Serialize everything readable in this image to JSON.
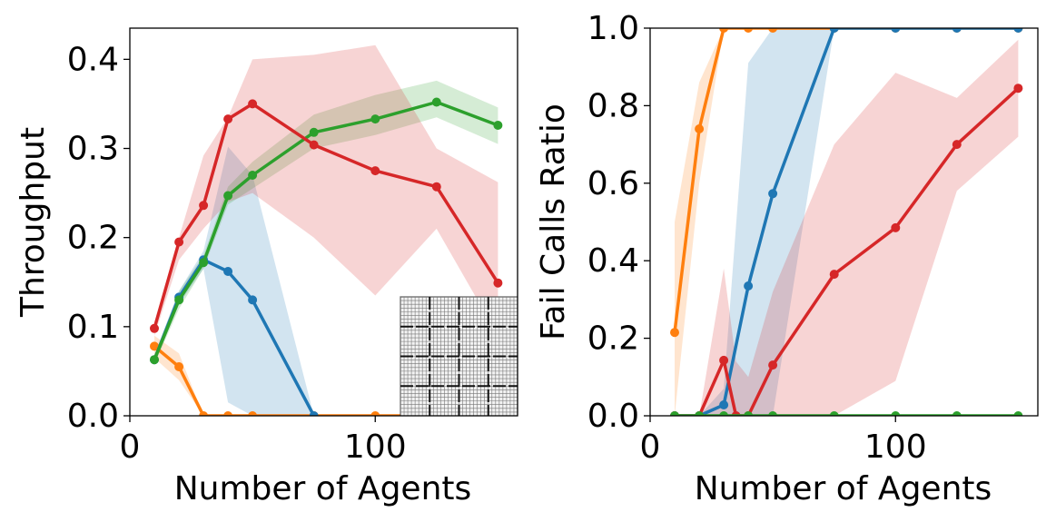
{
  "chart_data": [
    {
      "type": "line",
      "xlabel": "Number of Agents",
      "ylabel": "Throughput",
      "xlim": [
        0,
        158
      ],
      "ylim": [
        0,
        0.435
      ],
      "xticks": [
        0,
        100
      ],
      "yticks": [
        0.0,
        0.1,
        0.2,
        0.3,
        0.4
      ],
      "xtick_labels": [
        "0",
        "100"
      ],
      "ytick_labels": [
        "0.0",
        "0.1",
        "0.2",
        "0.3",
        "0.4"
      ],
      "grid": false,
      "has_inset_map": true,
      "series": [
        {
          "color": "#ff7f0e",
          "x": [
            10,
            20,
            30,
            40,
            50,
            75,
            100,
            125,
            150
          ],
          "values": [
            0.078,
            0.055,
            0.0,
            0.0,
            0.0,
            0.0,
            0.0,
            0.0,
            0.0
          ],
          "lower": [
            0.065,
            0.04,
            0.0,
            0.0,
            0.0,
            0.0,
            0.0,
            0.0,
            0.0
          ],
          "upper": [
            0.09,
            0.07,
            0.0,
            0.0,
            0.0,
            0.0,
            0.0,
            0.0,
            0.0
          ]
        },
        {
          "color": "#1f77b4",
          "x": [
            10,
            20,
            30,
            40,
            50,
            75
          ],
          "values": [
            0.063,
            0.133,
            0.175,
            0.162,
            0.13,
            0.0
          ],
          "lower": [
            0.058,
            0.125,
            0.165,
            0.015,
            0.0,
            0.0
          ],
          "upper": [
            0.068,
            0.14,
            0.185,
            0.302,
            0.27,
            0.0
          ]
        },
        {
          "color": "#2ca02c",
          "x": [
            10,
            20,
            30,
            40,
            50,
            75,
            100,
            125,
            150
          ],
          "values": [
            0.063,
            0.13,
            0.172,
            0.247,
            0.27,
            0.318,
            0.333,
            0.352,
            0.326
          ],
          "lower": [
            0.058,
            0.12,
            0.165,
            0.237,
            0.255,
            0.3,
            0.315,
            0.335,
            0.305
          ],
          "upper": [
            0.068,
            0.14,
            0.18,
            0.257,
            0.285,
            0.338,
            0.36,
            0.376,
            0.346
          ]
        },
        {
          "color": "#d62728",
          "x": [
            10,
            20,
            30,
            40,
            50,
            75,
            100,
            125,
            150
          ],
          "values": [
            0.098,
            0.195,
            0.236,
            0.333,
            0.35,
            0.304,
            0.275,
            0.257,
            0.149
          ],
          "lower": [
            0.09,
            0.175,
            0.21,
            0.24,
            0.25,
            0.2,
            0.135,
            0.21,
            0.09
          ],
          "upper": [
            0.105,
            0.2,
            0.292,
            0.335,
            0.4,
            0.405,
            0.416,
            0.3,
            0.262
          ]
        }
      ]
    },
    {
      "type": "line",
      "xlabel": "Number of Agents",
      "ylabel": "Fail Calls Ratio",
      "xlim": [
        0,
        158
      ],
      "ylim": [
        0,
        1.0
      ],
      "xticks": [
        0,
        100
      ],
      "yticks": [
        0.0,
        0.2,
        0.4,
        0.6,
        0.8,
        1.0
      ],
      "xtick_labels": [
        "0",
        "100"
      ],
      "ytick_labels": [
        "0.0",
        "0.2",
        "0.4",
        "0.6",
        "0.8",
        "1.0"
      ],
      "grid": false,
      "series": [
        {
          "color": "#ff7f0e",
          "x": [
            10,
            20,
            30,
            40,
            50,
            75,
            100,
            125,
            150
          ],
          "values": [
            0.215,
            0.74,
            1.0,
            1.0,
            1.0,
            1.0,
            1.0,
            1.0,
            1.0
          ],
          "lower": [
            0.0,
            0.6,
            1.0,
            1.0,
            1.0,
            1.0,
            1.0,
            1.0,
            1.0
          ],
          "upper": [
            0.5,
            0.86,
            1.0,
            1.0,
            1.0,
            1.0,
            1.0,
            1.0,
            1.0
          ]
        },
        {
          "color": "#1f77b4",
          "x": [
            10,
            20,
            30,
            40,
            50,
            75,
            100,
            125,
            150
          ],
          "values": [
            0.0,
            0.0,
            0.028,
            0.335,
            0.573,
            1.0,
            1.0,
            1.0,
            1.0
          ],
          "lower": [
            0.0,
            0.0,
            0.0,
            0.0,
            0.0,
            1.0,
            1.0,
            1.0,
            1.0
          ],
          "upper": [
            0.0,
            0.0,
            0.07,
            0.91,
            1.0,
            1.0,
            1.0,
            1.0,
            1.0
          ]
        },
        {
          "color": "#d62728",
          "x": [
            10,
            20,
            30,
            35,
            40,
            50,
            75,
            100,
            125,
            150
          ],
          "values": [
            0.0,
            0.0,
            0.143,
            0.0,
            0.0,
            0.131,
            0.365,
            0.485,
            0.7,
            0.845
          ],
          "lower": [
            0.0,
            0.0,
            0.0,
            0.0,
            0.0,
            0.0,
            0.0,
            0.09,
            0.58,
            0.72
          ],
          "upper": [
            0.0,
            0.0,
            0.38,
            0.14,
            0.1,
            0.32,
            0.7,
            0.885,
            0.82,
            0.97
          ]
        },
        {
          "color": "#2ca02c",
          "x": [
            10,
            20,
            30,
            40,
            50,
            75,
            100,
            125,
            150
          ],
          "values": [
            0.0,
            0.0,
            0.0,
            0.0,
            0.0,
            0.0,
            0.0,
            0.0,
            0.0
          ],
          "lower": [
            0.0,
            0.0,
            0.0,
            0.0,
            0.0,
            0.0,
            0.0,
            0.0,
            0.0
          ],
          "upper": [
            0.0,
            0.0,
            0.0,
            0.0,
            0.0,
            0.0,
            0.0,
            0.0,
            0.0
          ]
        }
      ]
    }
  ]
}
